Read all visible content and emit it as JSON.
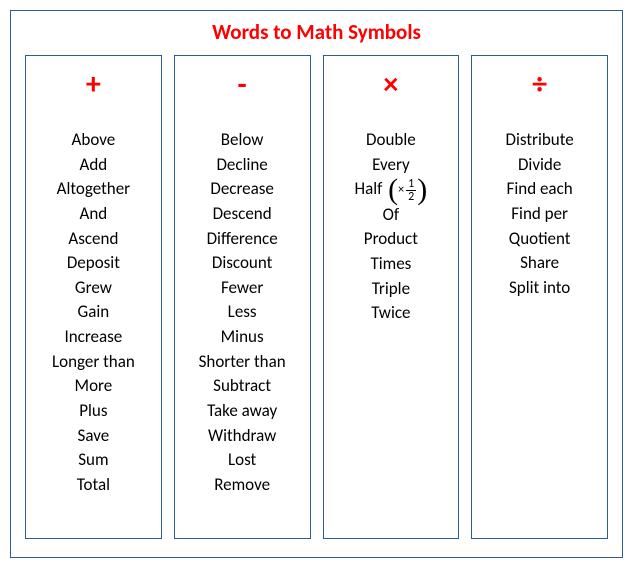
{
  "title": "Words to Math Symbols",
  "title_color": "#ff0000",
  "border_color": "#2e5c9a",
  "symbol_color": "#ff0000",
  "text_color": "#000000",
  "columns": [
    {
      "symbol": "+",
      "words": [
        "Above",
        "Add",
        "Altogether",
        "And",
        "Ascend",
        "Deposit",
        "Grew",
        "Gain",
        "Increase",
        "Longer than",
        "More",
        "Plus",
        "Save",
        "Sum",
        "Total"
      ]
    },
    {
      "symbol": "-",
      "words": [
        "Below",
        "Decline",
        "Decrease",
        "Descend",
        "Difference",
        "Discount",
        "Fewer",
        "Less",
        "Minus",
        "Shorter than",
        "Subtract",
        "Take away",
        "Withdraw",
        "Lost",
        "Remove"
      ]
    },
    {
      "symbol": "×",
      "words": [
        "Double",
        "Every",
        "Half",
        "Of",
        "Product",
        "Times",
        "Triple",
        "Twice"
      ],
      "half_annotation": {
        "prefix": "×",
        "numerator": "1",
        "denominator": "2"
      }
    },
    {
      "symbol": "÷",
      "words": [
        "Distribute",
        "Divide",
        "Find each",
        "Find per",
        "Quotient",
        "Share",
        "Split into"
      ]
    }
  ]
}
